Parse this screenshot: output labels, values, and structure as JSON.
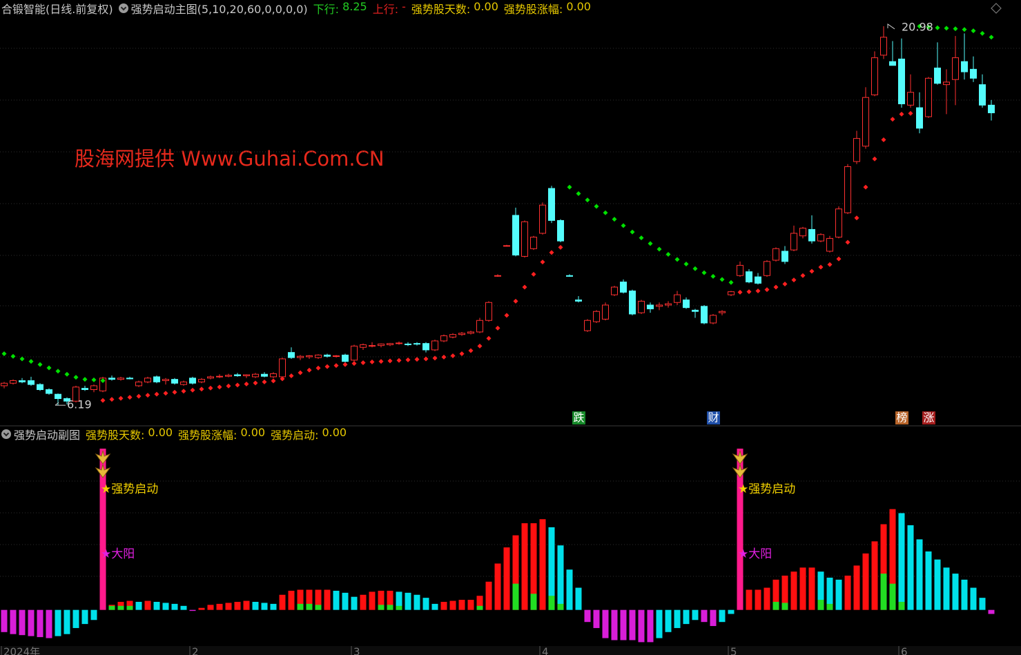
{
  "header": {
    "security": "合锻智能(日线.前复权)",
    "indicator": "强势启动主图(5,10,20,60,0,0,0,0)",
    "items": [
      {
        "label": "下行:",
        "value": "8.25",
        "color": "#22cc22"
      },
      {
        "label": "上行:",
        "value": "-",
        "color": "#e02020"
      },
      {
        "label": "强势股天数:",
        "value": "0.00",
        "color": "#e6c800"
      },
      {
        "label": "强势股涨幅:",
        "value": "0.00",
        "color": "#e6c800"
      }
    ]
  },
  "watermark": "股海网提供 Www.Guhai.Com.CN",
  "chart_data": [
    {
      "type": "candlestick",
      "categories": [
        "2024年",
        null,
        null,
        null,
        null,
        null,
        null,
        null,
        null,
        null,
        null,
        null,
        null,
        null,
        null,
        null,
        null,
        null,
        null,
        null,
        null,
        "2",
        null,
        null,
        null,
        null,
        null,
        null,
        null,
        null,
        null,
        null,
        null,
        null,
        null,
        null,
        null,
        null,
        null,
        "3",
        null,
        null,
        null,
        null,
        null,
        null,
        null,
        null,
        null,
        null,
        null,
        null,
        null,
        null,
        null,
        null,
        null,
        null,
        null,
        null,
        "4",
        null,
        null,
        null,
        null,
        null,
        null,
        null,
        null,
        null,
        null,
        null,
        null,
        null,
        null,
        null,
        null,
        null,
        null,
        null,
        null,
        "5",
        null,
        null,
        null,
        null,
        null,
        null,
        null,
        null,
        null,
        null,
        null,
        null,
        null,
        null,
        null,
        null,
        null,
        null,
        "6",
        null,
        null,
        null,
        null,
        null,
        null,
        null,
        null,
        null,
        null
      ],
      "open": [
        6.95,
        7.05,
        7.15,
        7.15,
        7.0,
        6.8,
        6.62,
        6.45,
        6.35,
        6.85,
        6.8,
        6.75,
        7.25,
        7.2,
        7.25,
        6.95,
        7.1,
        7.3,
        7.15,
        7.2,
        7.0,
        7.25,
        7.1,
        7.25,
        7.3,
        7.32,
        7.38,
        7.34,
        7.3,
        7.4,
        7.3,
        7.3,
        8.25,
        8.05,
        8.08,
        8.05,
        8.15,
        8.1,
        8.15,
        7.95,
        8.45,
        8.5,
        8.52,
        8.55,
        8.6,
        8.58,
        8.6,
        8.6,
        8.35,
        8.7,
        8.85,
        8.95,
        9.0,
        9.05,
        9.5,
        11.25,
        12.4,
        13.6,
        12.0,
        12.3,
        12.9,
        14.65,
        13.4,
        11.25,
        10.3,
        9.1,
        9.45,
        9.55,
        10.5,
        11.0,
        10.65,
        9.8,
        10.1,
        10.05,
        10.1,
        10.2,
        10.3,
        9.9,
        10.05,
        9.4,
        9.8,
        10.5,
        11.25,
        11.4,
        11.2,
        11.25,
        11.85,
        12.2,
        12.25,
        12.8,
        13.05,
        12.6,
        12.2,
        12.75,
        13.7,
        15.7,
        16.3,
        18.3,
        19.85,
        19.6,
        19.7,
        17.9,
        17.8,
        17.45,
        19.35,
        18.7,
        18.9,
        19.6,
        19.3,
        18.7,
        17.9
      ],
      "high": [
        7.1,
        7.2,
        7.25,
        7.3,
        7.05,
        6.85,
        6.65,
        6.5,
        6.95,
        6.95,
        7.0,
        7.3,
        7.35,
        7.3,
        7.3,
        7.15,
        7.3,
        7.35,
        7.25,
        7.25,
        7.15,
        7.3,
        7.25,
        7.35,
        7.4,
        7.42,
        7.45,
        7.4,
        7.45,
        7.48,
        7.48,
        8.05,
        8.45,
        8.15,
        8.15,
        8.18,
        8.2,
        8.15,
        8.2,
        8.55,
        8.6,
        8.65,
        8.6,
        8.62,
        8.68,
        8.65,
        8.65,
        8.65,
        8.75,
        8.95,
        9.0,
        9.05,
        9.1,
        9.6,
        10.25,
        11.3,
        12.45,
        13.9,
        13.4,
        12.8,
        14.1,
        14.75,
        13.45,
        11.3,
        10.45,
        9.55,
        9.9,
        10.2,
        10.85,
        11.1,
        10.7,
        10.3,
        10.2,
        10.2,
        10.25,
        10.65,
        10.4,
        9.95,
        10.1,
        9.75,
        9.9,
        10.65,
        11.8,
        11.5,
        11.35,
        11.85,
        12.35,
        12.4,
        13.2,
        13.15,
        13.6,
        12.9,
        12.8,
        13.95,
        15.6,
        16.9,
        18.6,
        20.0,
        20.98,
        20.4,
        20.5,
        19.1,
        18.4,
        19.0,
        20.35,
        19.3,
        20.6,
        20.7,
        19.8,
        19.1,
        18.1
      ],
      "low": [
        6.85,
        7.0,
        7.05,
        6.95,
        6.75,
        6.6,
        6.19,
        6.22,
        6.3,
        6.75,
        6.7,
        6.7,
        7.15,
        7.15,
        7.2,
        6.9,
        7.05,
        7.05,
        7.0,
        7.0,
        6.95,
        7.0,
        7.05,
        7.2,
        7.25,
        7.28,
        7.3,
        7.25,
        7.25,
        7.28,
        7.25,
        7.25,
        8.0,
        7.95,
        8.0,
        8.0,
        8.05,
        8.05,
        7.85,
        7.9,
        8.35,
        8.45,
        8.45,
        8.5,
        8.55,
        8.5,
        8.52,
        8.25,
        8.3,
        8.65,
        8.8,
        8.9,
        8.95,
        9.0,
        9.45,
        11.2,
        12.38,
        12.0,
        11.95,
        12.25,
        12.85,
        13.3,
        12.55,
        11.2,
        10.2,
        9.05,
        9.4,
        9.5,
        10.45,
        10.55,
        9.7,
        9.75,
        9.8,
        9.9,
        10.0,
        10.1,
        9.95,
        9.6,
        9.35,
        9.35,
        9.7,
        10.45,
        11.2,
        10.95,
        10.9,
        11.2,
        11.8,
        11.7,
        12.2,
        12.7,
        12.5,
        12.55,
        12.15,
        12.7,
        13.65,
        15.6,
        16.2,
        18.25,
        19.7,
        19.5,
        17.8,
        17.8,
        16.8,
        17.4,
        18.7,
        17.55,
        17.9,
        18.9,
        18.8,
        17.8,
        17.3
      ],
      "close": [
        7.05,
        7.15,
        7.1,
        7.0,
        6.8,
        6.65,
        6.45,
        6.35,
        6.9,
        6.8,
        6.95,
        7.25,
        7.2,
        7.25,
        7.22,
        7.1,
        7.25,
        7.1,
        7.2,
        7.05,
        7.1,
        7.05,
        7.2,
        7.3,
        7.32,
        7.36,
        7.34,
        7.38,
        7.4,
        7.32,
        7.42,
        8.0,
        8.05,
        8.1,
        8.12,
        8.15,
        8.1,
        8.12,
        7.9,
        8.5,
        8.55,
        8.52,
        8.58,
        8.6,
        8.62,
        8.55,
        8.58,
        8.35,
        8.7,
        8.9,
        8.95,
        9.0,
        9.05,
        9.5,
        10.2,
        11.25,
        12.42,
        12.05,
        13.35,
        12.75,
        14.0,
        13.4,
        12.6,
        11.22,
        10.25,
        9.5,
        9.85,
        10.1,
        10.8,
        10.6,
        9.75,
        10.25,
        9.95,
        10.1,
        10.15,
        10.5,
        10.0,
        9.85,
        9.4,
        9.7,
        9.85,
        10.62,
        11.65,
        11.0,
        10.95,
        11.8,
        12.3,
        11.8,
        12.9,
        13.1,
        12.6,
        12.85,
        12.7,
        13.85,
        15.5,
        16.6,
        18.2,
        19.75,
        20.55,
        19.45,
        17.95,
        18.4,
        17.0,
        18.95,
        18.75,
        18.8,
        19.75,
        19.2,
        18.95,
        17.9,
        17.6
      ],
      "up_color": "#ff3030",
      "down_color": "#54fcfc",
      "ylim": [
        5.44,
        21.41
      ],
      "stop_above": {
        "color": "#00e000",
        "values": [
          8.2,
          8.1,
          8.0,
          7.9,
          7.78,
          7.65,
          7.52,
          7.4,
          7.28,
          7.2,
          7.18,
          7.15,
          null,
          null,
          null,
          null,
          null,
          null,
          null,
          null,
          null,
          null,
          null,
          null,
          null,
          null,
          null,
          null,
          null,
          null,
          null,
          null,
          null,
          null,
          null,
          null,
          null,
          null,
          null,
          null,
          null,
          null,
          null,
          null,
          null,
          null,
          null,
          null,
          null,
          null,
          null,
          null,
          null,
          null,
          null,
          null,
          null,
          null,
          null,
          null,
          null,
          null,
          null,
          14.7,
          14.45,
          14.2,
          13.95,
          13.7,
          13.45,
          13.2,
          12.95,
          12.72,
          12.5,
          12.28,
          12.08,
          11.88,
          11.7,
          11.52,
          11.36,
          11.22,
          11.1,
          10.98,
          null,
          null,
          null,
          null,
          null,
          null,
          null,
          null,
          null,
          null,
          null,
          null,
          null,
          null,
          null,
          null,
          null,
          null,
          null,
          null,
          20.98,
          20.95,
          20.92,
          20.9,
          20.88,
          20.85,
          20.8,
          20.7,
          20.55
        ]
      },
      "stop_below": {
        "color": "#ff2020",
        "values": [
          null,
          null,
          null,
          null,
          null,
          null,
          null,
          null,
          null,
          null,
          null,
          6.38,
          6.42,
          6.46,
          6.5,
          6.54,
          6.58,
          6.62,
          6.66,
          6.7,
          6.74,
          6.78,
          6.82,
          6.86,
          6.9,
          6.94,
          6.98,
          7.02,
          7.06,
          7.1,
          7.14,
          7.22,
          7.34,
          7.46,
          7.56,
          7.64,
          7.7,
          7.74,
          7.78,
          7.82,
          7.85,
          7.88,
          7.9,
          7.92,
          7.94,
          7.96,
          7.98,
          8.0,
          8.03,
          8.07,
          8.12,
          8.2,
          8.32,
          8.5,
          8.8,
          9.2,
          9.7,
          10.25,
          10.8,
          11.3,
          11.78,
          12.15,
          12.35,
          null,
          null,
          null,
          null,
          null,
          null,
          null,
          null,
          null,
          null,
          null,
          null,
          null,
          null,
          null,
          null,
          null,
          null,
          null,
          10.6,
          10.62,
          10.65,
          10.7,
          10.8,
          10.92,
          11.08,
          11.25,
          11.42,
          11.58,
          11.68,
          11.9,
          12.55,
          13.5,
          14.7,
          15.8,
          16.55,
          17.35,
          17.55,
          17.58,
          null,
          null,
          null,
          null,
          null,
          null,
          null,
          null,
          null
        ]
      },
      "events": [
        null,
        null,
        null,
        null,
        null,
        null,
        null,
        null,
        null,
        null,
        null,
        null,
        null,
        null,
        null,
        null,
        null,
        null,
        null,
        null,
        null,
        null,
        null,
        null,
        null,
        null,
        null,
        null,
        null,
        null,
        null,
        null,
        null,
        null,
        null,
        null,
        null,
        null,
        null,
        null,
        null,
        null,
        null,
        null,
        null,
        null,
        null,
        null,
        null,
        null,
        null,
        null,
        null,
        null,
        null,
        null,
        null,
        null,
        null,
        null,
        null,
        null,
        null,
        null,
        {
          "label": "跌",
          "color": "#178a2a"
        },
        null,
        null,
        null,
        null,
        null,
        null,
        null,
        null,
        null,
        null,
        null,
        null,
        null,
        null,
        {
          "label": "财",
          "color": "#1f4fa8"
        },
        null,
        null,
        null,
        null,
        null,
        null,
        null,
        null,
        null,
        null,
        null,
        null,
        null,
        null,
        null,
        null,
        null,
        null,
        null,
        null,
        {
          "label": "榜",
          "color": "#b8652a"
        },
        null,
        null,
        {
          "label": "涨",
          "color": "#a51e1e"
        },
        null,
        null,
        null,
        null,
        null,
        null,
        null
      ]
    },
    {
      "type": "bar",
      "title": "强势启动副图",
      "items": [
        {
          "label": "强势股天数:",
          "value": "0.00"
        },
        {
          "label": "强势股涨幅:",
          "value": "0.00"
        },
        {
          "label": "强势启动:",
          "value": "0.00"
        }
      ],
      "item_color": "#e6c800",
      "ylim": [
        -42,
        160
      ],
      "colors": {
        "rise": "#ff1010",
        "fall": "#00e0ea",
        "neg_fall": "#d81ed8",
        "neg_rise": "#00e0ea",
        "green": "#22dd22",
        "signal": "#ff1a8c"
      },
      "values": [
        -22,
        -24,
        -25,
        -26,
        -27,
        -28,
        -26,
        -24,
        -18,
        -14,
        -10,
        null,
        5,
        8,
        9,
        8,
        9,
        8,
        7,
        6,
        4,
        -1,
        2,
        5,
        6,
        7,
        8,
        9,
        8,
        7,
        6,
        15,
        19,
        20,
        20,
        20,
        20,
        19,
        17,
        13,
        15,
        18,
        19,
        19,
        18,
        17,
        15,
        12,
        6,
        8,
        9,
        10,
        10,
        14,
        28,
        46,
        62,
        74,
        86,
        86,
        90,
        82,
        64,
        40,
        22,
        -12,
        -18,
        -28,
        -30,
        -30,
        -30,
        -32,
        -32,
        -28,
        -22,
        -18,
        -14,
        -10,
        -12,
        -16,
        -12,
        -4,
        null,
        20,
        20,
        22,
        30,
        34,
        38,
        42,
        42,
        38,
        32,
        30,
        34,
        44,
        56,
        68,
        85,
        100,
        96,
        84,
        70,
        58,
        50,
        42,
        36,
        30,
        22,
        12,
        -4
      ],
      "green_values": [
        null,
        null,
        null,
        null,
        null,
        null,
        null,
        null,
        null,
        null,
        null,
        null,
        4,
        4,
        4,
        null,
        null,
        null,
        null,
        null,
        null,
        null,
        null,
        null,
        null,
        null,
        null,
        null,
        null,
        null,
        null,
        null,
        null,
        6,
        6,
        5,
        null,
        null,
        null,
        null,
        null,
        null,
        5,
        5,
        4,
        null,
        null,
        null,
        null,
        null,
        null,
        null,
        null,
        4,
        null,
        null,
        null,
        26,
        null,
        16,
        null,
        14,
        6,
        null,
        null,
        null,
        null,
        null,
        null,
        null,
        null,
        null,
        null,
        null,
        null,
        null,
        null,
        null,
        null,
        null,
        null,
        null,
        null,
        null,
        null,
        null,
        8,
        7,
        null,
        null,
        null,
        10,
        6,
        null,
        null,
        null,
        null,
        null,
        36,
        26,
        8,
        null,
        null,
        null,
        null,
        null,
        null,
        null,
        null,
        null,
        null
      ],
      "signal_values": [
        null,
        null,
        null,
        null,
        null,
        null,
        null,
        null,
        null,
        null,
        null,
        160,
        null,
        null,
        null,
        null,
        null,
        null,
        null,
        null,
        null,
        null,
        null,
        null,
        null,
        null,
        null,
        null,
        null,
        null,
        null,
        null,
        null,
        null,
        null,
        null,
        null,
        null,
        null,
        null,
        null,
        null,
        null,
        null,
        null,
        null,
        null,
        null,
        null,
        null,
        null,
        null,
        null,
        null,
        null,
        null,
        null,
        null,
        null,
        null,
        null,
        null,
        null,
        null,
        null,
        null,
        null,
        null,
        null,
        null,
        null,
        null,
        null,
        null,
        null,
        null,
        null,
        null,
        null,
        null,
        null,
        null,
        160,
        null,
        null,
        null,
        null,
        null,
        null,
        null,
        null,
        null,
        null,
        null,
        null,
        null,
        null,
        null,
        null,
        null,
        null,
        null,
        null,
        null,
        null,
        null,
        null,
        null,
        null,
        null,
        null
      ],
      "signal_labels": [
        {
          "text": "★强势启动",
          "color": "#f2d000"
        },
        {
          "text": "★大阳",
          "color": "#e020e0"
        }
      ]
    }
  ]
}
